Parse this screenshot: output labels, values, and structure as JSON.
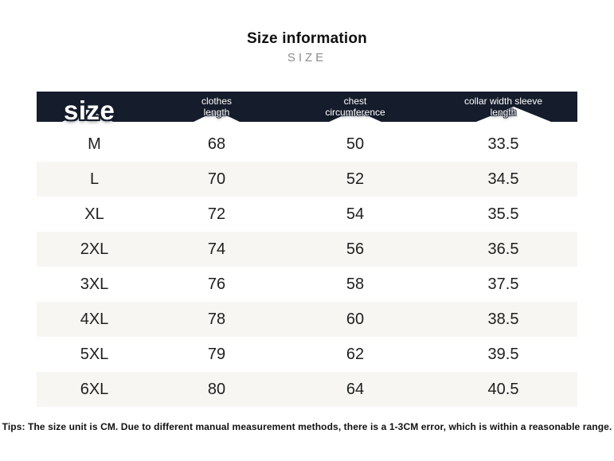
{
  "page": {
    "title": "Size information",
    "subtitle": "SIZE",
    "tips": "Tips: The size unit is CM. Due to different manual measurement methods, there is a 1-3CM error, which is within a reasonable range."
  },
  "colors": {
    "header_bg": "#151c2b",
    "row_alt_bg": "#f7f6f3",
    "subtitle_gray": "#8d8d8d",
    "header_text": "#ffffff",
    "body_text": "#1f1f1f"
  },
  "table": {
    "columns": [
      {
        "line1": "size",
        "line2": ""
      },
      {
        "line1": "clothes",
        "line2": "length"
      },
      {
        "line1": "chest",
        "line2": "circumference"
      },
      {
        "line1": "collar width sleeve",
        "line2": "length"
      }
    ],
    "rows": [
      [
        "M",
        "68",
        "50",
        "33.5"
      ],
      [
        "L",
        "70",
        "52",
        "34.5"
      ],
      [
        "XL",
        "72",
        "54",
        "35.5"
      ],
      [
        "2XL",
        "74",
        "56",
        "36.5"
      ],
      [
        "3XL",
        "76",
        "58",
        "37.5"
      ],
      [
        "4XL",
        "78",
        "60",
        "38.5"
      ],
      [
        "5XL",
        "79",
        "62",
        "39.5"
      ],
      [
        "6XL",
        "80",
        "64",
        "40.5"
      ]
    ]
  },
  "chart_data": {
    "type": "table",
    "title": "Size information",
    "subtitle": "SIZE",
    "unit": "CM",
    "columns": [
      "size",
      "clothes length",
      "chest circumference",
      "collar width sleeve length"
    ],
    "rows": [
      [
        "M",
        68,
        50,
        33.5
      ],
      [
        "L",
        70,
        52,
        34.5
      ],
      [
        "XL",
        72,
        54,
        35.5
      ],
      [
        "2XL",
        74,
        56,
        36.5
      ],
      [
        "3XL",
        76,
        58,
        37.5
      ],
      [
        "4XL",
        78,
        60,
        38.5
      ],
      [
        "5XL",
        79,
        62,
        39.5
      ],
      [
        "6XL",
        80,
        64,
        40.5
      ]
    ],
    "note": "Tips: The size unit is CM. Due to different manual measurement methods, there is a 1-3CM error, which is within a reasonable range."
  }
}
